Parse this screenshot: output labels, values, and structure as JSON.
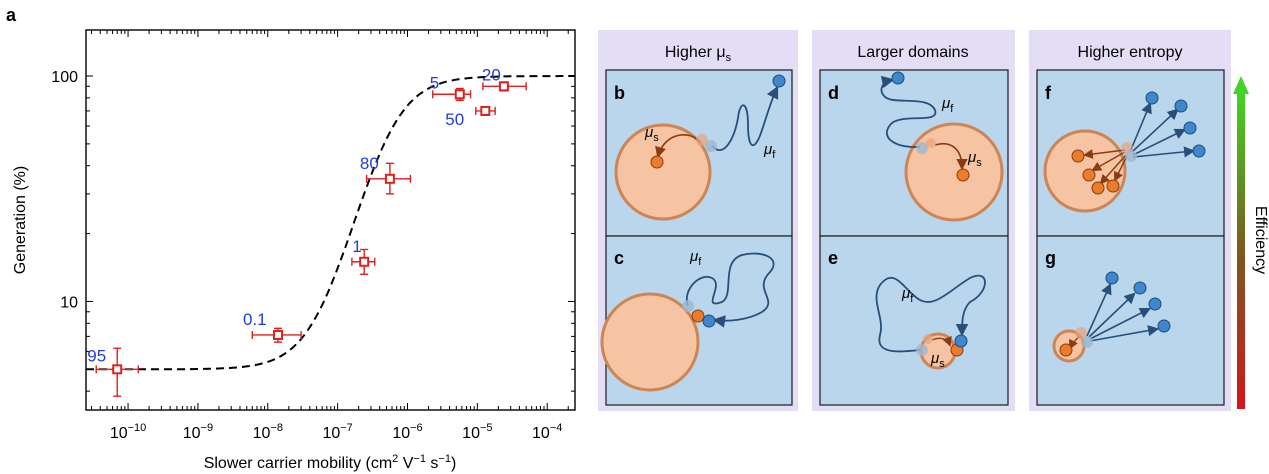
{
  "panel_labels": {
    "a": "a",
    "b": "b",
    "c": "c",
    "d": "d",
    "e": "e",
    "f": "f",
    "g": "g"
  },
  "chart_data": {
    "type": "scatter",
    "xscale": "log",
    "yscale": "log",
    "xlabel": "Slower carrier mobility (cm",
    "xlabel_unit_sup1": "2",
    "xlabel_unit_mid": " V",
    "xlabel_unit_sup2": "−1",
    "xlabel_unit_mid2": " s",
    "xlabel_unit_sup3": "−1",
    "xlabel_unit_end": ")",
    "ylabel": "Generation (%)",
    "xlim": [
      2.5e-11,
      0.00025
    ],
    "ylim": [
      3.3,
      160
    ],
    "xticks": [
      {
        "value": 1e-10,
        "base": "10",
        "exp": "−10"
      },
      {
        "value": 1e-09,
        "base": "10",
        "exp": "−9"
      },
      {
        "value": 1e-08,
        "base": "10",
        "exp": "−8"
      },
      {
        "value": 1e-07,
        "base": "10",
        "exp": "−7"
      },
      {
        "value": 1e-06,
        "base": "10",
        "exp": "−6"
      },
      {
        "value": 1e-05,
        "base": "10",
        "exp": "−5"
      },
      {
        "value": 0.0001,
        "base": "10",
        "exp": "−4"
      }
    ],
    "yticks": [
      {
        "value": 10,
        "label": "10"
      },
      {
        "value": 100,
        "label": "100"
      }
    ],
    "points": [
      {
        "label": "95",
        "x": 7e-11,
        "y": 5.0,
        "xerr": [
          3.5e-11,
          1.4e-10
        ],
        "yerr": [
          3.8,
          6.2
        ]
      },
      {
        "label": "0.1",
        "x": 1.4e-08,
        "y": 7.1,
        "xerr": [
          6e-09,
          3e-08
        ],
        "yerr": [
          6.6,
          7.6
        ]
      },
      {
        "label": "1",
        "x": 2.4e-07,
        "y": 15.0,
        "xerr": [
          1.6e-07,
          3.4e-07
        ],
        "yerr": [
          13.2,
          17.0
        ]
      },
      {
        "label": "80",
        "x": 5.6e-07,
        "y": 35.0,
        "xerr": [
          2.6e-07,
          1.1e-06
        ],
        "yerr": [
          30.0,
          41.0
        ]
      },
      {
        "label": "5",
        "x": 5.6e-06,
        "y": 83.0,
        "xerr": [
          2.3e-06,
          8e-06
        ],
        "yerr": [
          78.0,
          88.0
        ]
      },
      {
        "label": "50",
        "x": 1.3e-05,
        "y": 70.0,
        "xerr": [
          9.5e-06,
          1.8e-05
        ],
        "yerr": [
          67.0,
          73.0
        ]
      },
      {
        "label": "20",
        "x": 2.4e-05,
        "y": 90.0,
        "xerr": [
          1.2e-05,
          5e-05
        ],
        "yerr": [
          86.0,
          94.0
        ]
      }
    ],
    "fit_curve": {
      "style": "dashed",
      "ymin": 5.0,
      "ymax": 100.0,
      "x0": 5e-07,
      "slope": 1.4
    },
    "colors": {
      "marker": "#e0201e",
      "label": "#1f3fd6",
      "fit": "#000000"
    }
  },
  "schematic": {
    "columns": [
      {
        "header": "Higher μ",
        "header_sub": "s"
      },
      {
        "header": "Larger domains",
        "header_sub": ""
      },
      {
        "header": "Higher entropy",
        "header_sub": ""
      }
    ],
    "mu_s": "μ",
    "mu_s_sub": "s",
    "mu_f": "μ",
    "mu_f_sub": "f",
    "efficiency_label": "Efficiency",
    "colors": {
      "header_bg": "#e4ddf6",
      "cell_bg": "#b9d6ec",
      "domain_fill": "#f6c4a2",
      "domain_stroke": "#cd8555",
      "fast_carrier": "#3f86cc",
      "slow_carrier": "#ec7c2a",
      "path": "#274f7a",
      "slow_path": "#8a3b12"
    }
  }
}
